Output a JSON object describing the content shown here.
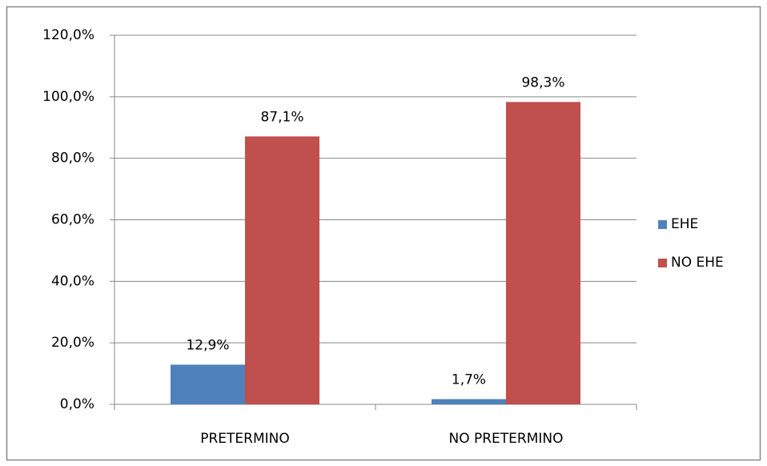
{
  "chart_data": {
    "type": "bar",
    "categories": [
      "PRETERMINO",
      "NO PRETERMINO"
    ],
    "series": [
      {
        "name": "EHE",
        "color": "#4f81bd",
        "values": [
          12.9,
          1.7
        ],
        "value_labels": [
          "12,9%",
          "1,7%"
        ]
      },
      {
        "name": "NO EHE",
        "color": "#c0504d",
        "values": [
          87.1,
          98.3
        ],
        "value_labels": [
          "87,1%",
          "98,3%"
        ]
      }
    ],
    "ylim": [
      0,
      120
    ],
    "yticks": [
      {
        "value": 0,
        "label": "0,0%"
      },
      {
        "value": 20,
        "label": "20,0%"
      },
      {
        "value": 40,
        "label": "40,0%"
      },
      {
        "value": 60,
        "label": "60,0%"
      },
      {
        "value": 80,
        "label": "80,0%"
      },
      {
        "value": 100,
        "label": "100,0%"
      },
      {
        "value": 120,
        "label": "120,0%"
      }
    ],
    "grid": true,
    "legend": "right"
  }
}
